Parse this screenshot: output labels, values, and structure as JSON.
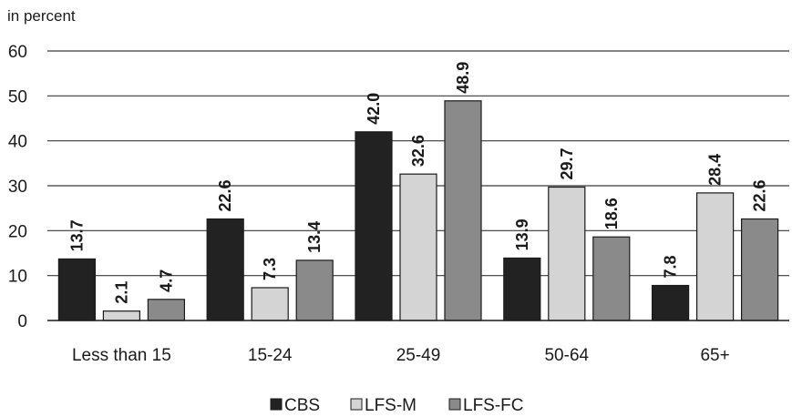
{
  "chart_data": {
    "type": "bar",
    "ylabel": "in percent",
    "ylim": [
      0,
      60
    ],
    "yticks": [
      0,
      10,
      20,
      30,
      40,
      50,
      60
    ],
    "grid": true,
    "legend_position": "bottom",
    "categories": [
      "Less than 15",
      "15-24",
      "25-49",
      "50-64",
      "65+"
    ],
    "series": [
      {
        "name": "CBS",
        "color": "#222222",
        "values": [
          13.7,
          22.6,
          42.0,
          13.9,
          7.8
        ],
        "labels": [
          "13.7",
          "22.6",
          "42.0",
          "13.9",
          "7.8"
        ]
      },
      {
        "name": "LFS-M",
        "color": "#d4d4d4",
        "values": [
          2.1,
          7.3,
          32.6,
          29.7,
          28.4
        ],
        "labels": [
          "2.1",
          "7.3",
          "32.6",
          "29.7",
          "28.4"
        ]
      },
      {
        "name": "LFS-FC",
        "color": "#8a8a8a",
        "values": [
          4.7,
          13.4,
          48.9,
          18.6,
          22.6
        ],
        "labels": [
          "4.7",
          "13.4",
          "48.9",
          "18.6",
          "22.6"
        ]
      }
    ]
  }
}
